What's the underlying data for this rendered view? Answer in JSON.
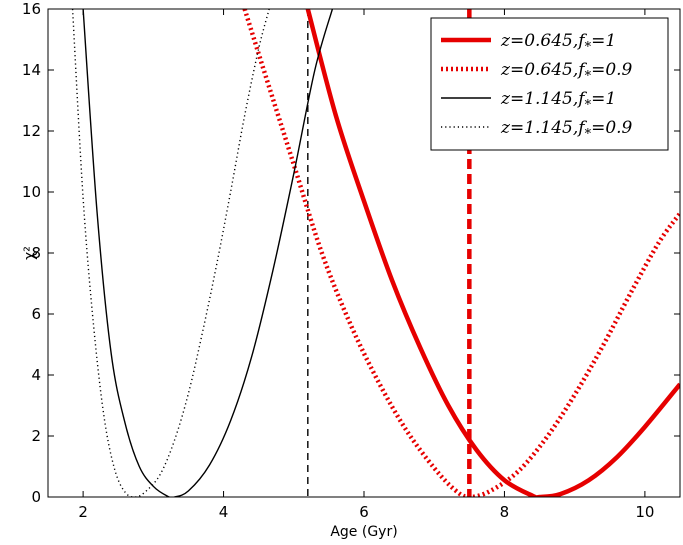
{
  "chart_data": {
    "type": "line",
    "xlabel": "Age (Gyr)",
    "ylabel": "χ²",
    "xlim": [
      1.5,
      10.5
    ],
    "ylim": [
      0,
      16
    ],
    "xticks": [
      2,
      4,
      6,
      8,
      10
    ],
    "yticks": [
      0,
      2,
      4,
      6,
      8,
      10,
      12,
      14,
      16
    ],
    "grid": false,
    "legend_position": "top-right",
    "series": [
      {
        "name": "z=0.645, f*=1",
        "legend_main": "z=0.645,",
        "legend_f": "f",
        "legend_sub": "*",
        "legend_tail": "=1",
        "color": "#e60000",
        "style": "solid-thick",
        "x": [
          5.2,
          5.6,
          6.0,
          6.4,
          6.8,
          7.2,
          7.6,
          8.0,
          8.4,
          8.5,
          8.8,
          9.2,
          9.6,
          10.0,
          10.5
        ],
        "y": [
          16.0,
          12.5,
          9.7,
          7.1,
          4.9,
          3.0,
          1.55,
          0.55,
          0.04,
          0.0,
          0.1,
          0.55,
          1.3,
          2.3,
          3.7
        ]
      },
      {
        "name": "z=0.645, f*=0.9",
        "legend_main": "z=0.645,",
        "legend_f": "f",
        "legend_sub": "*",
        "legend_tail": "=0.9",
        "color": "#e60000",
        "style": "dotted-thick",
        "x": [
          4.3,
          4.6,
          5.0,
          5.4,
          5.8,
          6.2,
          6.6,
          7.0,
          7.3,
          7.5,
          7.8,
          8.2,
          8.6,
          9.0,
          9.4,
          9.8,
          10.2,
          10.5
        ],
        "y": [
          16.0,
          13.8,
          10.9,
          8.0,
          5.7,
          3.8,
          2.2,
          0.95,
          0.22,
          0.0,
          0.2,
          0.85,
          1.95,
          3.35,
          4.95,
          6.7,
          8.35,
          9.3
        ]
      },
      {
        "name": "z=1.145, f*=1",
        "legend_main": "z=1.145,",
        "legend_f": "f",
        "legend_sub": "*",
        "legend_tail": "=1",
        "color": "#000000",
        "style": "solid-thin",
        "x": [
          2.0,
          2.2,
          2.4,
          2.6,
          2.8,
          3.0,
          3.2,
          3.3,
          3.5,
          3.8,
          4.1,
          4.4,
          4.7,
          5.0,
          5.3,
          5.55
        ],
        "y": [
          16.0,
          9.3,
          4.7,
          2.4,
          1.0,
          0.35,
          0.03,
          0.0,
          0.2,
          1.05,
          2.5,
          4.6,
          7.4,
          10.6,
          14.0,
          16.0
        ]
      },
      {
        "name": "z=1.145, f*=0.9",
        "legend_main": "z=1.145,",
        "legend_f": "f",
        "legend_sub": "*",
        "legend_tail": "=0.9",
        "color": "#000000",
        "style": "dotted-thin",
        "x": [
          1.85,
          2.0,
          2.15,
          2.3,
          2.45,
          2.6,
          2.75,
          2.9,
          3.1,
          3.3,
          3.5,
          3.7,
          3.9,
          4.1,
          4.3,
          4.5,
          4.65
        ],
        "y": [
          16.0,
          9.8,
          5.6,
          2.6,
          0.9,
          0.15,
          0.0,
          0.2,
          0.75,
          1.85,
          3.4,
          5.4,
          7.6,
          10.0,
          12.5,
          14.7,
          16.0
        ]
      }
    ],
    "vertical_lines": [
      {
        "x": 5.2,
        "color": "#000000",
        "style": "dashed-thin"
      },
      {
        "x": 7.5,
        "color": "#e60000",
        "style": "dashed-thick"
      }
    ]
  }
}
